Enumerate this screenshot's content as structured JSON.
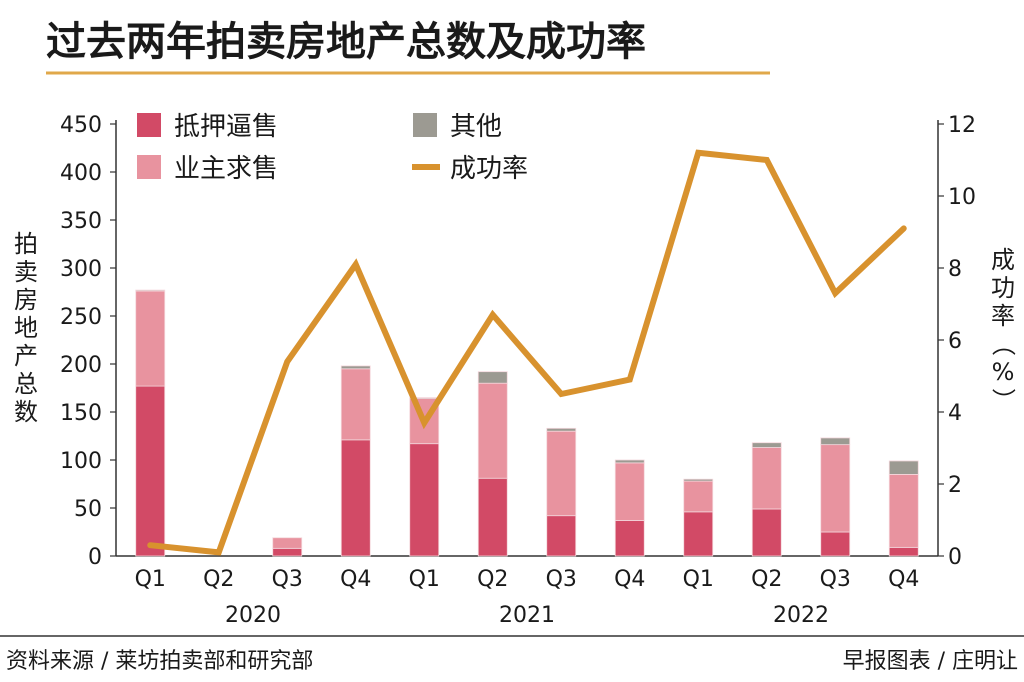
{
  "chart_data": {
    "type": "bar",
    "title": "过去两年拍卖房地产总数及成功率",
    "categories": [
      "Q1",
      "Q2",
      "Q3",
      "Q4",
      "Q1",
      "Q2",
      "Q3",
      "Q4",
      "Q1",
      "Q2",
      "Q3",
      "Q4"
    ],
    "years": [
      "2020",
      "2021",
      "2022"
    ],
    "ylabel_left": "拍卖房地产总数",
    "ylabel_right": "成功率（%）",
    "ylim_left": [
      0,
      450
    ],
    "ylim_right": [
      0,
      12
    ],
    "yticks_left": [
      0,
      50,
      100,
      150,
      200,
      250,
      300,
      350,
      400,
      450
    ],
    "yticks_right": [
      0,
      2,
      4,
      6,
      8,
      10,
      12
    ],
    "stacked": true,
    "series": [
      {
        "name": "抵押逼售",
        "kind": "bar",
        "color": "#d24a66",
        "values": [
          177,
          0,
          8,
          121,
          117,
          81,
          42,
          37,
          46,
          49,
          25,
          9
        ]
      },
      {
        "name": "业主求售",
        "kind": "bar",
        "color": "#e8939f",
        "values": [
          99,
          0,
          11,
          74,
          47,
          99,
          88,
          60,
          32,
          64,
          91,
          76
        ]
      },
      {
        "name": "其他",
        "kind": "bar",
        "color": "#9c9a92",
        "values": [
          1,
          0,
          0,
          3,
          1,
          12,
          3,
          3,
          2,
          5,
          7,
          14
        ]
      },
      {
        "name": "成功率",
        "kind": "line",
        "axis": "right",
        "color": "#d8922e",
        "values": [
          0.3,
          0.1,
          5.4,
          8.1,
          3.7,
          6.7,
          4.5,
          4.9,
          11.2,
          11.0,
          7.3,
          9.1
        ]
      }
    ],
    "grid": false,
    "legend_position": "top-left"
  },
  "footer": {
    "source": "资料来源 / 莱坊拍卖部和研究部",
    "credit": "早报图表 / 庄明让"
  },
  "colors": {
    "title_underline": "#e0a84a",
    "axis": "#333333"
  }
}
